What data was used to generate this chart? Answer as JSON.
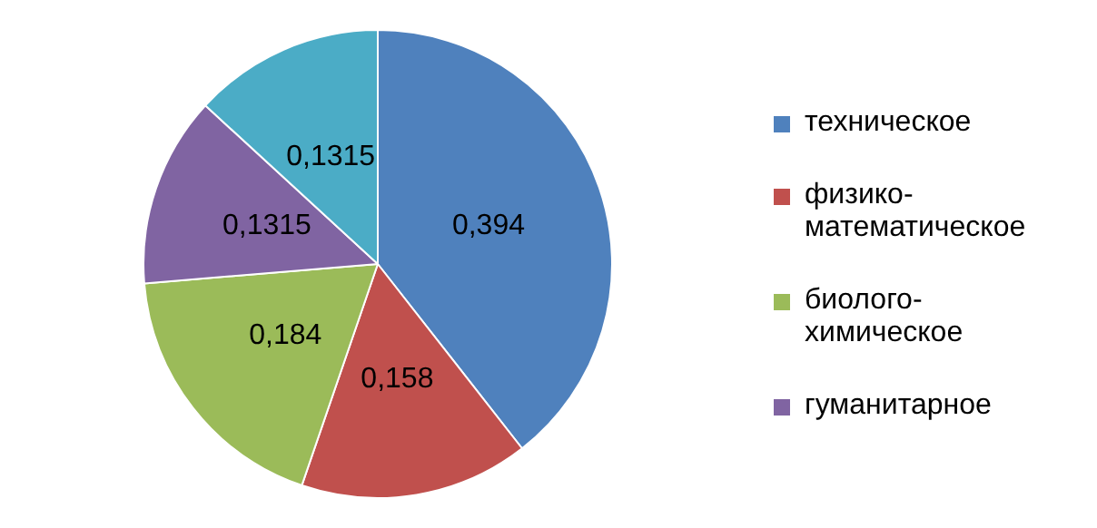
{
  "chart_data": {
    "type": "pie",
    "categories": [
      "техническое",
      "физико-математическое",
      "биолого-химическое",
      "гуманитарное",
      null
    ],
    "values": [
      0.394,
      0.158,
      0.184,
      0.1315,
      0.1315
    ],
    "colors": [
      "#4f81bd",
      "#c0504d",
      "#9bbb59",
      "#8064a2",
      "#4bacc6"
    ],
    "value_labels": [
      "0,394",
      "0,158",
      "0,184",
      "0,1315",
      "0,1315"
    ],
    "legend": "right"
  }
}
